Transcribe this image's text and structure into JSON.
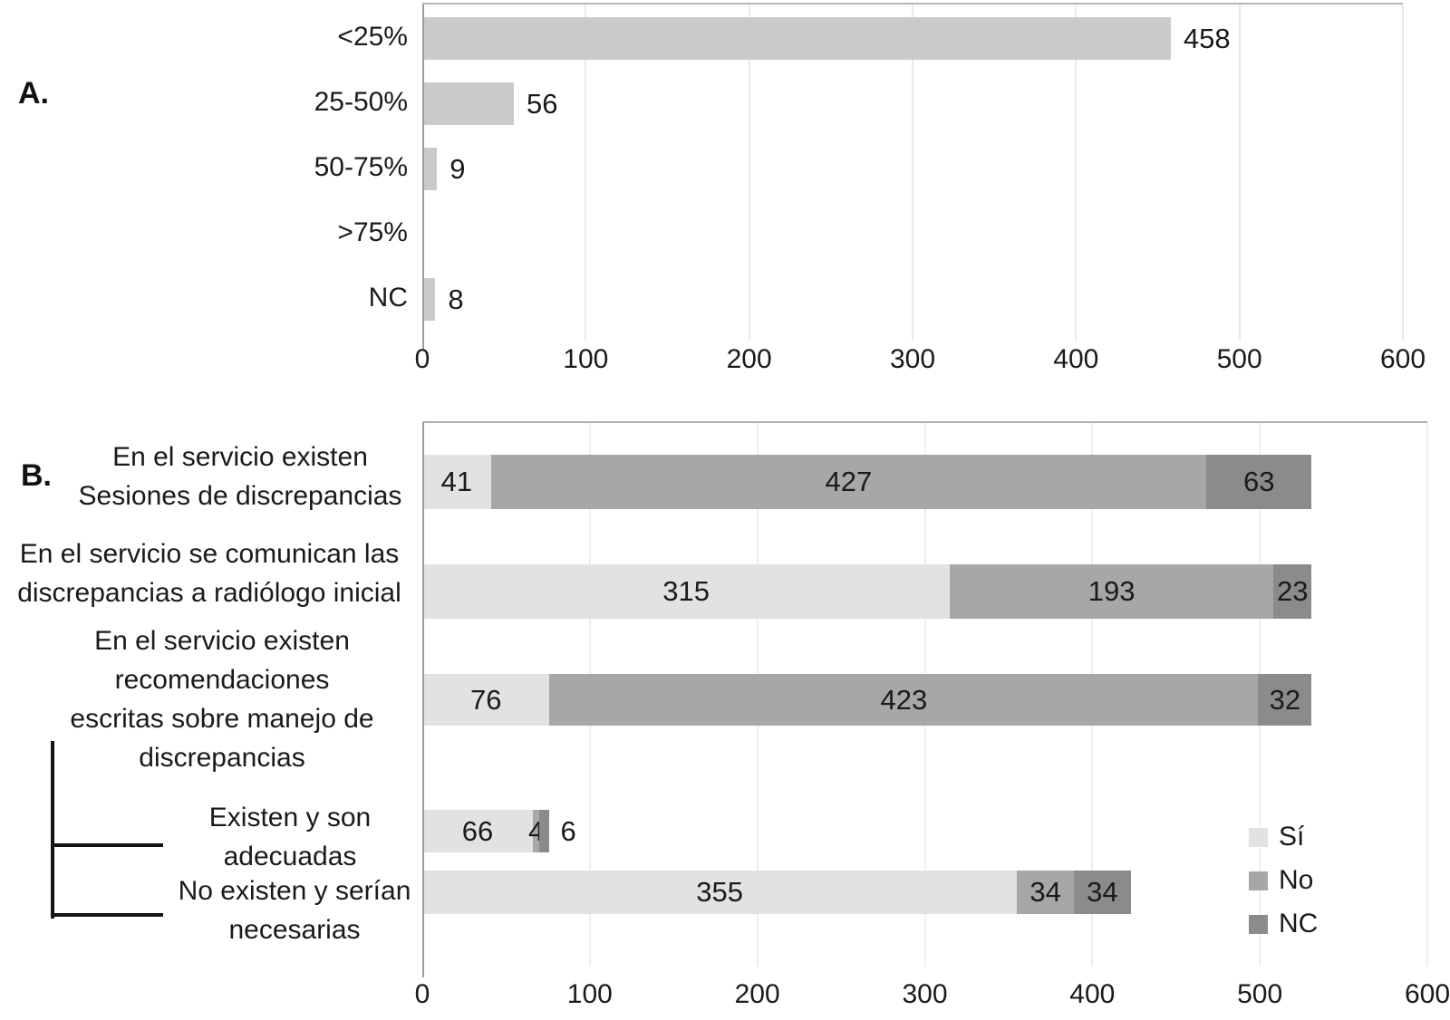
{
  "chart_data": [
    {
      "id": "A",
      "panel_label": "A.",
      "type": "bar",
      "orientation": "horizontal",
      "stacked": false,
      "title": "",
      "categories": [
        "<25%",
        "25-50%",
        "50-75%",
        ">75%",
        "NC"
      ],
      "values": [
        458,
        56,
        9,
        0,
        8
      ],
      "data_labels": [
        "458",
        "56",
        "9",
        "",
        "8"
      ],
      "bar_color": "#cacaca",
      "xlim": [
        0,
        600
      ],
      "xticks": [
        0,
        100,
        200,
        300,
        400,
        500,
        600
      ],
      "grid": true,
      "legend": null
    },
    {
      "id": "B",
      "panel_label": "B.",
      "type": "bar",
      "orientation": "horizontal",
      "stacked": true,
      "title": "",
      "categories": [
        [
          "En el servicio existen",
          "Sesiones de discrepancias"
        ],
        [
          "En el servicio se comunican las",
          "discrepancias a radiólogo inicial"
        ],
        [
          "En el servicio existen",
          "recomendaciones",
          "escritas sobre manejo de",
          "discrepancias"
        ],
        [
          "Existen y son",
          "adecuadas"
        ],
        [
          "No existen y serían",
          "necesarias"
        ]
      ],
      "series": [
        {
          "name": "Sí",
          "color": "#e2e2e2",
          "values": [
            41,
            315,
            76,
            66,
            355
          ]
        },
        {
          "name": "No",
          "color": "#a7a7a7",
          "values": [
            427,
            193,
            423,
            4,
            34
          ]
        },
        {
          "name": "NC",
          "color": "#8b8b8b",
          "values": [
            63,
            23,
            32,
            6,
            34
          ]
        }
      ],
      "row_totals": [
        531,
        531,
        531,
        76,
        423
      ],
      "xlim": [
        0,
        600
      ],
      "xticks": [
        0,
        100,
        200,
        300,
        400,
        500,
        600
      ],
      "grid": true,
      "legend_position": "inside-right",
      "label_outside": [
        {
          "row": 3,
          "series": 2
        }
      ]
    }
  ]
}
